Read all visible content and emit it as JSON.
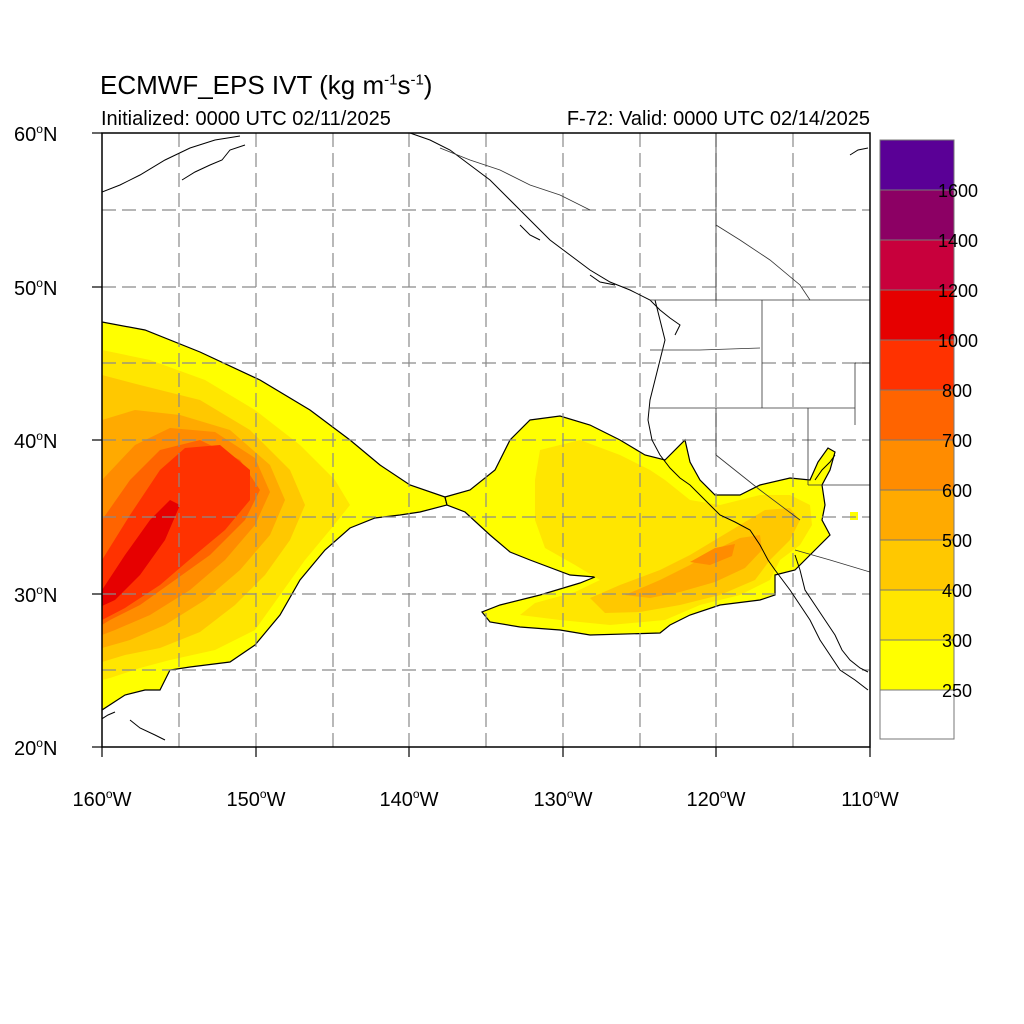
{
  "title": {
    "main": "ECMWF_EPS IVT (kg m",
    "exp1": "-1",
    "mid": "s",
    "exp2": "-1",
    "close": ")"
  },
  "initialized": "Initialized: 0000 UTC 02/11/2025",
  "valid": "F-72: Valid: 0000 UTC 02/14/2025",
  "map": {
    "lon_range": [
      -160,
      -110
    ],
    "lat_range": [
      20,
      60
    ],
    "lat_labels": [
      {
        "value": 60,
        "text": "60",
        "hemi": "N"
      },
      {
        "value": 50,
        "text": "50",
        "hemi": "N"
      },
      {
        "value": 40,
        "text": "40",
        "hemi": "N"
      },
      {
        "value": 30,
        "text": "30",
        "hemi": "N"
      },
      {
        "value": 20,
        "text": "20",
        "hemi": "N"
      }
    ],
    "lon_labels": [
      {
        "value": -160,
        "text": "160",
        "hemi": "W"
      },
      {
        "value": -150,
        "text": "150",
        "hemi": "W"
      },
      {
        "value": -140,
        "text": "140",
        "hemi": "W"
      },
      {
        "value": -130,
        "text": "130",
        "hemi": "W"
      },
      {
        "value": -120,
        "text": "120",
        "hemi": "W"
      },
      {
        "value": -110,
        "text": "110",
        "hemi": "W"
      }
    ],
    "grid": "dashed"
  },
  "colorbar": {
    "levels": [
      {
        "label": "250",
        "color": "#ffff00"
      },
      {
        "label": "300",
        "color": "#ffe600"
      },
      {
        "label": "400",
        "color": "#ffc800"
      },
      {
        "label": "500",
        "color": "#ffaa00"
      },
      {
        "label": "600",
        "color": "#ff8c00"
      },
      {
        "label": "700",
        "color": "#ff6400"
      },
      {
        "label": "800",
        "color": "#ff3200"
      },
      {
        "label": "1000",
        "color": "#e60000"
      },
      {
        "label": "1200",
        "color": "#c8003c"
      },
      {
        "label": "1400",
        "color": "#8c0064"
      },
      {
        "label": "1600",
        "color": "#5a0096"
      }
    ],
    "below_color": "#ffffff",
    "top_color": "#5a0096"
  }
}
